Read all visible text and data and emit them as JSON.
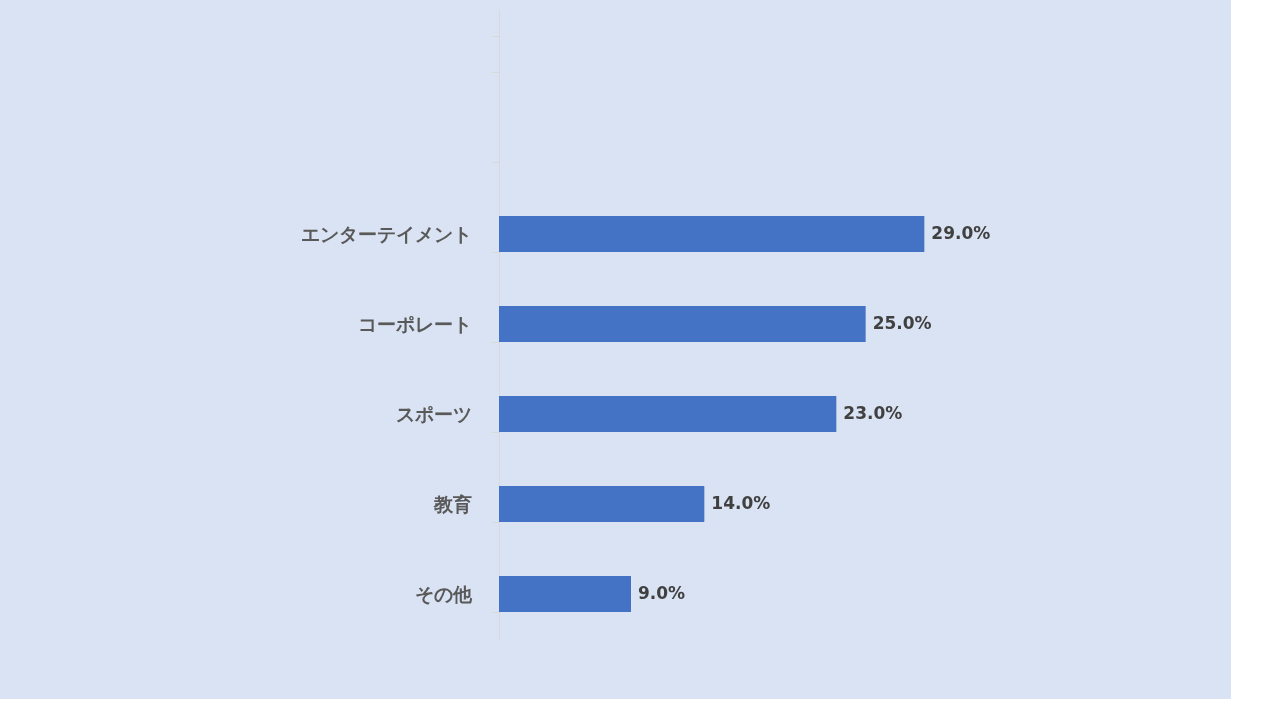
{
  "chart_data": {
    "type": "bar",
    "orientation": "horizontal",
    "tick_labels": "y",
    "grid": false,
    "color": "#4472c4",
    "categories": [
      null,
      null,
      "エンターテイメント",
      "コーポレート",
      "スポーツ",
      "教育",
      "その他"
    ],
    "values": [
      null,
      null,
      29.0,
      25.0,
      23.0,
      14.0,
      9.0
    ],
    "value_labels": [
      null,
      null,
      "29.0%",
      "25.0%",
      "23.0%",
      "14.0%",
      "9.0%"
    ]
  }
}
